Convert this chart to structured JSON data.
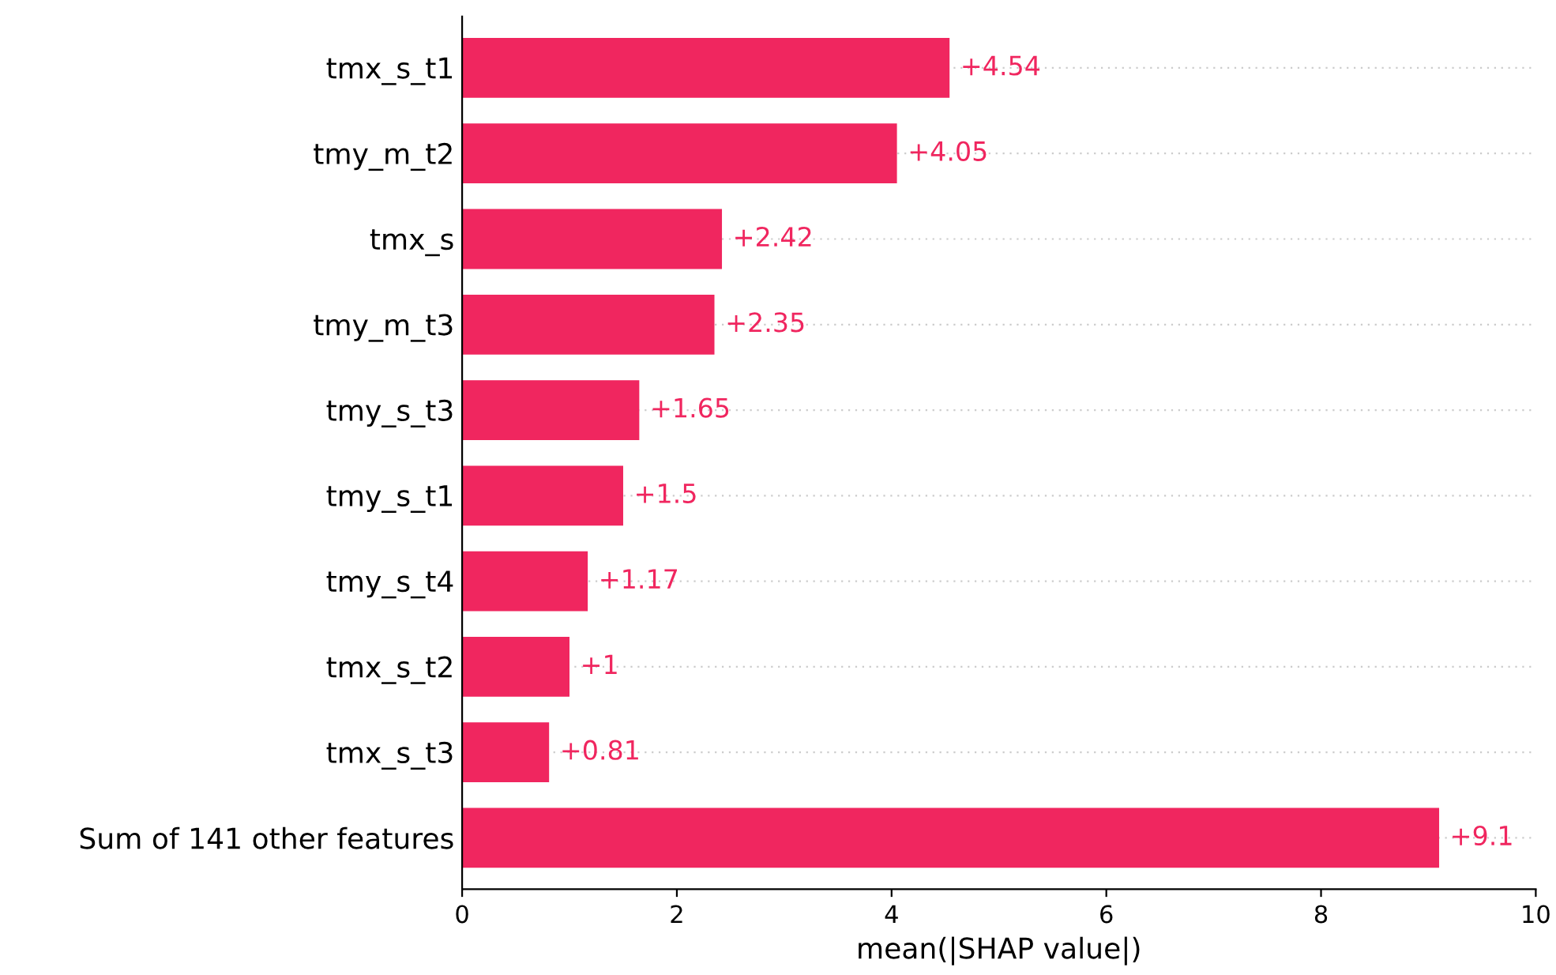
{
  "chart_data": {
    "type": "bar",
    "orientation": "horizontal",
    "xlabel": "mean(|SHAP value|)",
    "categories": [
      "tmx_s_t1",
      "tmy_m_t2",
      "tmx_s",
      "tmy_m_t3",
      "tmy_s_t3",
      "tmy_s_t1",
      "tmy_s_t4",
      "tmx_s_t2",
      "tmx_s_t3",
      "Sum of 141 other features"
    ],
    "values": [
      4.54,
      4.05,
      2.42,
      2.35,
      1.65,
      1.5,
      1.17,
      1,
      0.81,
      9.1
    ],
    "value_labels": [
      "+4.54",
      "+4.05",
      "+2.42",
      "+2.35",
      "+1.65",
      "+1.5",
      "+1.17",
      "+1",
      "+0.81",
      "+9.1"
    ],
    "color": "#f0265f",
    "xlim": [
      0,
      10
    ],
    "xticks": [
      0,
      2,
      4,
      6,
      8,
      10
    ],
    "grid": "y"
  }
}
